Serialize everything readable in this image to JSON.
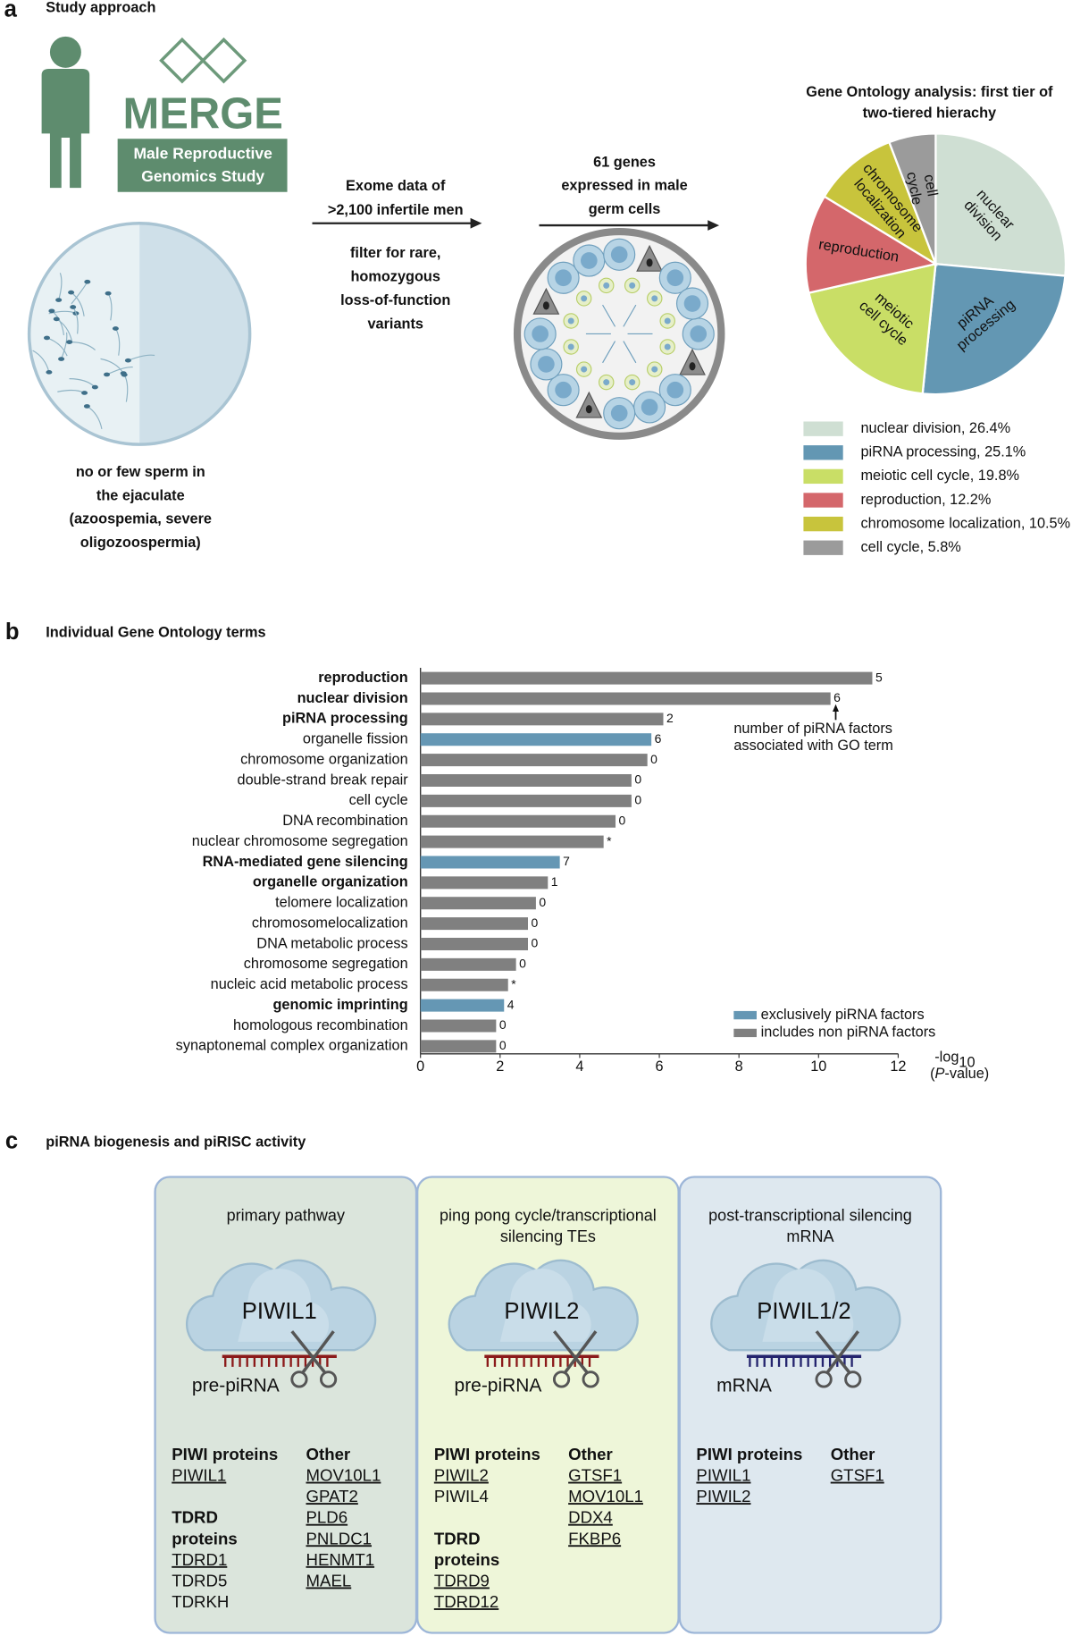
{
  "panel_a": {
    "label": "a",
    "title": "Study approach",
    "logo": {
      "name": "MERGE",
      "subtitle": [
        "Male Reproductive",
        "Genomics Study"
      ]
    },
    "phenotype": [
      "no or few sperm in",
      "the ejaculate",
      "(azoospemia, severe",
      "oligozoospermia)"
    ],
    "step1": [
      "Exome data of",
      ">2,100 infertile men"
    ],
    "step2": [
      "filter for rare,",
      "homozygous",
      "loss-of-function",
      "variants"
    ],
    "step3": [
      "61 genes",
      "expressed in male",
      "germ cells"
    ]
  },
  "chart_data": [
    {
      "type": "pie",
      "title": [
        "Gene Ontology analysis: first tier of",
        "two-tiered hierachy"
      ],
      "categories": [
        "nuclear division",
        "piRNA processing",
        "meiotic cell cycle",
        "reproduction",
        "chromosome localization",
        "cell cycle"
      ],
      "values": [
        26.4,
        25.1,
        19.8,
        12.2,
        10.5,
        5.8
      ],
      "value_labels": [
        "nuclear division, 26.4%",
        "piRNA processing, 25.1%",
        "meiotic cell cycle, 19.8%",
        "reproduction, 12.2%",
        "chromosome localization, 10.5%",
        "cell cycle, 5.8%"
      ],
      "colors": [
        "#cfdfd3",
        "#6397b3",
        "#c9de66",
        "#d4676b",
        "#c8c43c",
        "#9b9b9b"
      ],
      "legend": "bottom"
    },
    {
      "type": "bar",
      "orientation": "horizontal",
      "title": "Individual Gene Ontology terms",
      "categories": [
        "reproduction",
        "nuclear division",
        "piRNA processing",
        "organelle fission",
        "chromosome organization",
        "double-strand break repair",
        "cell cycle",
        "DNA recombination",
        "nuclear chromosome segregation",
        "RNA-mediated gene silencing",
        "organelle organization",
        "telomere localization",
        "chromosomelocalization",
        "DNA metabolic process",
        "chromosome segregation",
        "nucleic acid metabolic process",
        "genomic imprinting",
        "homologous recombination",
        "synaptonemal complex organization"
      ],
      "bold": [
        true,
        true,
        true,
        false,
        false,
        false,
        false,
        false,
        false,
        true,
        true,
        false,
        false,
        false,
        false,
        false,
        true,
        false,
        false
      ],
      "series": [
        {
          "name": "exclusively piRNA factors",
          "color": "#6597b4",
          "values": [
            null,
            null,
            null,
            5.8,
            null,
            null,
            null,
            null,
            null,
            3.5,
            null,
            null,
            null,
            null,
            null,
            null,
            2.1,
            null,
            null
          ]
        },
        {
          "name": "includes non piRNA factors",
          "color": "#808080",
          "values": [
            11.35,
            10.3,
            6.1,
            null,
            5.7,
            5.3,
            5.3,
            4.9,
            4.6,
            null,
            3.2,
            2.9,
            2.7,
            2.7,
            2.4,
            2.2,
            null,
            1.9,
            1.9
          ]
        }
      ],
      "factor_labels": [
        "5",
        "6",
        "2",
        "6",
        "0",
        "0",
        "0",
        "0",
        "*",
        "7",
        "1",
        "0",
        "0",
        "0",
        "0",
        "*",
        "4",
        "0",
        "0"
      ],
      "annotation": [
        "number of piRNA factors",
        "associated with GO term"
      ],
      "x_label": {
        "prefix": "-log",
        "subscript": "10",
        "open": "(",
        "italic": "P",
        "close": "-value)"
      },
      "xlim": [
        0,
        12
      ],
      "xticks": [
        0,
        2,
        4,
        6,
        8,
        10,
        12
      ],
      "legend": "lower right"
    }
  ],
  "panel_b": {
    "label": "b"
  },
  "panel_c": {
    "label": "c",
    "title": "piRNA biogenesis and piRISC activity",
    "boxes": [
      {
        "heading": [
          "primary pathway"
        ],
        "protein": "PIWIL1",
        "substrate": "pre-piRNA",
        "columns": [
          [
            {
              "header": [
                "PIWI proteins"
              ],
              "items": [
                {
                  "text": "PIWIL1",
                  "underlined": true
                }
              ]
            },
            {
              "header": [
                "TDRD",
                "proteins"
              ],
              "items": [
                {
                  "text": "TDRD1",
                  "underlined": true
                },
                {
                  "text": "TDRD5",
                  "underlined": false
                },
                {
                  "text": "TDRKH",
                  "underlined": false
                }
              ]
            }
          ],
          [
            {
              "header": [
                "Other"
              ],
              "items": [
                {
                  "text": "MOV10L1",
                  "underlined": true
                },
                {
                  "text": "GPAT2",
                  "underlined": true
                },
                {
                  "text": "PLD6",
                  "underlined": true
                },
                {
                  "text": "PNLDC1",
                  "underlined": true
                },
                {
                  "text": "HENMT1",
                  "underlined": true
                },
                {
                  "text": "MAEL",
                  "underlined": true
                }
              ]
            }
          ]
        ]
      },
      {
        "heading": [
          "ping pong cycle/transcriptional",
          "silencing TEs"
        ],
        "protein": "PIWIL2",
        "substrate": "pre-piRNA",
        "columns": [
          [
            {
              "header": [
                "PIWI proteins"
              ],
              "items": [
                {
                  "text": "PIWIL2",
                  "underlined": true
                },
                {
                  "text": "PIWIL4",
                  "underlined": false
                }
              ]
            },
            {
              "header": [
                "TDRD",
                "proteins"
              ],
              "items": [
                {
                  "text": "TDRD9",
                  "underlined": true
                },
                {
                  "text": "TDRD12",
                  "underlined": true
                }
              ]
            }
          ],
          [
            {
              "header": [
                "Other"
              ],
              "items": [
                {
                  "text": "GTSF1",
                  "underlined": true
                },
                {
                  "text": "MOV10L1",
                  "underlined": true
                },
                {
                  "text": "DDX4",
                  "underlined": true
                },
                {
                  "text": "FKBP6",
                  "underlined": true
                }
              ]
            }
          ]
        ]
      },
      {
        "heading": [
          "post-transcriptional silencing",
          "mRNA"
        ],
        "protein": "PIWIL1/2",
        "substrate": "mRNA",
        "columns": [
          [
            {
              "header": [
                "PIWI proteins"
              ],
              "items": [
                {
                  "text": "PIWIL1",
                  "underlined": true
                },
                {
                  "text": "PIWIL2",
                  "underlined": true
                }
              ]
            }
          ],
          [
            {
              "header": [
                "Other"
              ],
              "items": [
                {
                  "text": "GTSF1",
                  "underlined": true
                }
              ]
            }
          ]
        ]
      }
    ]
  }
}
